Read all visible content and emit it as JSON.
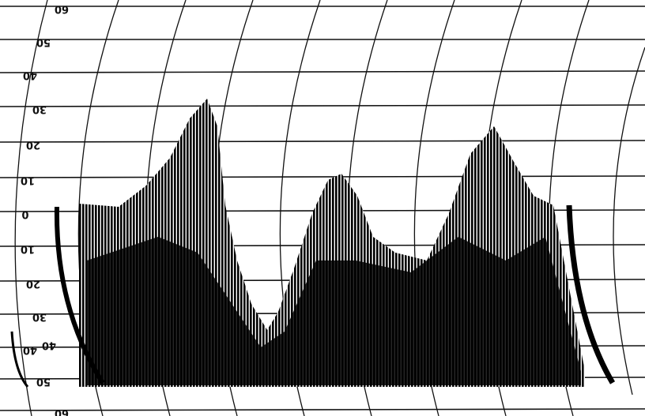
{
  "scale_labels": [
    "60",
    "50",
    "40",
    "30",
    "20",
    "10",
    "0",
    "10",
    "20",
    "30",
    "40",
    "50",
    "60"
  ],
  "margin_label": "40"
}
